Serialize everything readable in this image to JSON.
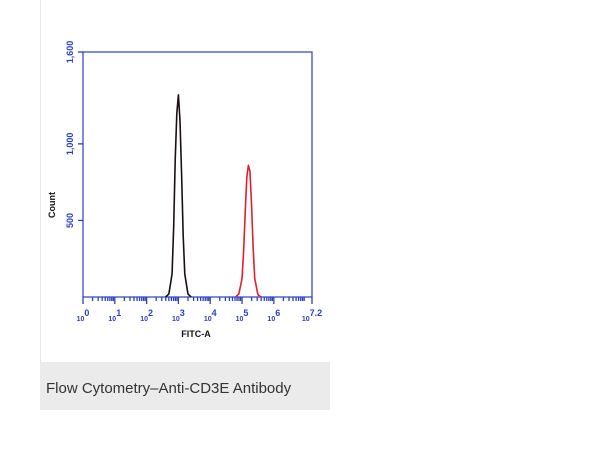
{
  "chart_data": {
    "type": "line",
    "caption": "Flow Cytometry–Anti-CD3E Antibody",
    "x_label": "FITC-A",
    "y_label": "Count",
    "xscale": "log",
    "xlim": [
      1,
      15848932
    ],
    "ylim": [
      0,
      1600
    ],
    "xticks": [
      {
        "value": 1,
        "label": "10",
        "exp": "0"
      },
      {
        "value": 10,
        "label": "10",
        "exp": "1"
      },
      {
        "value": 100,
        "label": "10",
        "exp": "2"
      },
      {
        "value": 1000,
        "label": "10",
        "exp": "3"
      },
      {
        "value": 10000,
        "label": "10",
        "exp": "4"
      },
      {
        "value": 100000,
        "label": "10",
        "exp": "5"
      },
      {
        "value": 1000000,
        "label": "10",
        "exp": "6"
      },
      {
        "value": 15848932,
        "label": "10",
        "exp": "7.2"
      }
    ],
    "yticks": [
      500,
      {
        "value": 1000,
        "label": "1,000"
      },
      {
        "value": 1600,
        "label": "1,600"
      }
    ],
    "axis_color": "#2a3fc4",
    "series": [
      {
        "color": "#1a1010",
        "x": [
          398,
          501,
          631,
          708,
          794,
          891,
          1000,
          1122,
          1259,
          1413,
          1585,
          1995,
          2512
        ],
        "values": [
          0,
          20,
          150,
          450,
          900,
          1200,
          1320,
          1150,
          800,
          400,
          150,
          20,
          0
        ]
      },
      {
        "color": "#e0202a",
        "x": [
          63096,
          79433,
          100000,
          112202,
          125893,
          141254,
          158489,
          177828,
          199526,
          223872,
          251189,
          316228,
          398107
        ],
        "values": [
          0,
          20,
          120,
          300,
          550,
          780,
          860,
          820,
          600,
          320,
          120,
          15,
          0
        ]
      }
    ]
  }
}
